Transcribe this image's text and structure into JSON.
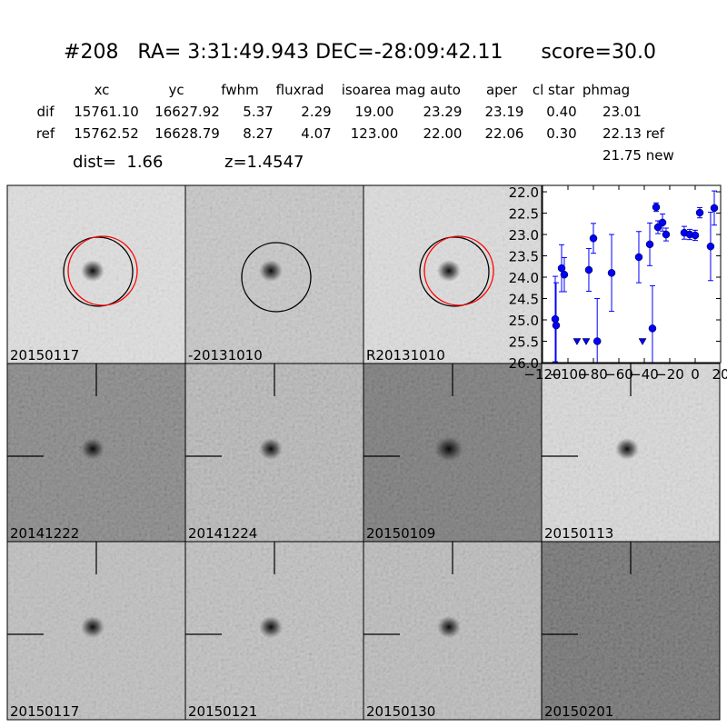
{
  "header": {
    "title": "#208   RA= 3:31:49.943 DEC=-28:09:42.11      score=30.0"
  },
  "table": {
    "columns": [
      "xc",
      "yc",
      "fwhm",
      "fluxrad",
      "isoarea",
      "mag auto",
      "aper",
      "cl star",
      "phmag"
    ],
    "rows": [
      [
        "dif",
        "15761.10",
        "16627.92",
        "5.37",
        "2.29",
        "19.00",
        "23.29",
        "23.19",
        "0.40",
        "23.01"
      ],
      [
        "ref",
        "15762.52",
        "16628.79",
        "8.27",
        "4.07",
        "123.00",
        "22.00",
        "22.06",
        "0.30",
        "22.13 ref"
      ]
    ],
    "extra": "21.75 new"
  },
  "dist": "dist=  1.66",
  "redshift": "z=1.4547",
  "stamps": [
    {
      "label": "20150117",
      "label_color": "#000000"
    },
    {
      "label": "-20131010",
      "label_color": "#000000"
    },
    {
      "label": "R20131010",
      "label_color": "#000000"
    },
    {
      "label": "20141222",
      "label_color": "#000000"
    },
    {
      "label": "20141224",
      "label_color": "#000000"
    },
    {
      "label": "20150109",
      "label_color": "#000000"
    },
    {
      "label": "20150113",
      "label_color": "#000000"
    },
    {
      "label": "20150117",
      "label_color": "#ff0000"
    },
    {
      "label": "20150121",
      "label_color": "#000000"
    },
    {
      "label": "20150130",
      "label_color": "#000000"
    },
    {
      "label": "20150201",
      "label_color": "#000000"
    }
  ],
  "chart_data": {
    "type": "scatter",
    "xlim": [
      -120,
      20
    ],
    "ylim": [
      26.0,
      21.85
    ],
    "xticks": [
      {
        "value": -120,
        "label": "−120"
      },
      {
        "value": -100,
        "label": "−100"
      },
      {
        "value": -80,
        "label": "−80"
      },
      {
        "value": -60,
        "label": "−60"
      },
      {
        "value": -40,
        "label": "−40"
      },
      {
        "value": -20,
        "label": "−20"
      },
      0,
      20
    ],
    "yticks": [
      {
        "value": 22,
        "label": "22.0"
      },
      {
        "value": 22.5,
        "label": "22.5"
      },
      {
        "value": 23,
        "label": "23.0"
      },
      {
        "value": 23.5,
        "label": "23.5"
      },
      {
        "value": 24,
        "label": "24.0"
      },
      {
        "value": 24.5,
        "label": "24.5"
      },
      {
        "value": 25,
        "label": "25.0"
      },
      {
        "value": 25.5,
        "label": "25.5"
      },
      {
        "value": 26,
        "label": "26.0"
      }
    ],
    "series": [
      {
        "color": "#0000ff",
        "marker": "circle",
        "x": [
          -110,
          -109.3,
          -105,
          -102.9,
          -83.6,
          -80,
          -77,
          -65.7,
          -44.3,
          -35.7,
          -33.6,
          -30.7,
          -29.3,
          -25.7,
          -22.9,
          -8.6,
          -4.3,
          0,
          3.6,
          12.1,
          15
        ],
        "values": [
          24.98,
          25.13,
          23.79,
          23.94,
          23.83,
          23.09,
          25.5,
          23.9,
          23.53,
          23.23,
          25.2,
          22.36,
          22.83,
          22.72,
          23.0,
          22.96,
          23.0,
          23.02,
          22.49,
          23.28,
          22.38
        ],
        "errors": [
          1.0,
          1.0,
          0.55,
          0.4,
          0.5,
          0.35,
          1.0,
          0.9,
          0.6,
          0.5,
          1.0,
          0.1,
          0.15,
          0.2,
          0.15,
          0.15,
          0.12,
          0.12,
          0.12,
          0.8,
          0.4
        ]
      },
      {
        "color": "#0000ff",
        "marker": "triangle",
        "x": [
          -92.9,
          -85.7,
          -41.4
        ],
        "values": [
          25.5,
          25.5,
          25.5
        ]
      }
    ]
  }
}
